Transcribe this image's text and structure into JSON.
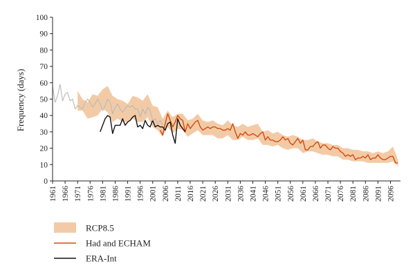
{
  "chart_data": {
    "type": "line",
    "ylabel": "Frequency (days)",
    "xlabel": "",
    "ylim": [
      0,
      100
    ],
    "xlim": [
      1961,
      2100
    ],
    "yticks": [
      0,
      10,
      20,
      30,
      40,
      50,
      60,
      70,
      80,
      90,
      100
    ],
    "xticks": [
      1961,
      1966,
      1971,
      1976,
      1981,
      1986,
      1991,
      1996,
      2001,
      2006,
      2011,
      2016,
      2021,
      2026,
      2031,
      2036,
      2041,
      2046,
      2051,
      2056,
      2061,
      2066,
      2071,
      2076,
      2081,
      2086,
      2091,
      2096
    ],
    "legend_position": "bottom-left",
    "grid": false,
    "series": [
      {
        "name": "RCP8.5",
        "kind": "band",
        "color": "#f2cba6",
        "x": [
          1971,
          1973,
          1975,
          1977,
          1979,
          1981,
          1983,
          1985,
          1987,
          1989,
          1991,
          1993,
          1995,
          1997,
          1999,
          2001,
          2003,
          2005,
          2007,
          2009,
          2011,
          2013,
          2015,
          2017,
          2019,
          2021,
          2023,
          2025,
          2027,
          2029,
          2031,
          2033,
          2035,
          2037,
          2039,
          2041,
          2043,
          2045,
          2047,
          2049,
          2051,
          2053,
          2055,
          2057,
          2059,
          2061,
          2063,
          2065,
          2067,
          2069,
          2071,
          2073,
          2075,
          2077,
          2079,
          2081,
          2083,
          2085,
          2087,
          2089,
          2091,
          2093,
          2095,
          2097,
          2099
        ],
        "upper": [
          55,
          50,
          48,
          53,
          52,
          56,
          58,
          52,
          50,
          49,
          47,
          52,
          51,
          49,
          53,
          46,
          45,
          38,
          43,
          39,
          41,
          41,
          37,
          38,
          41,
          37,
          36,
          37,
          35,
          34,
          37,
          34,
          33,
          35,
          33,
          34,
          35,
          30,
          31,
          29,
          30,
          28,
          27,
          28,
          27,
          25,
          25,
          26,
          24,
          23,
          23,
          22,
          22,
          20,
          20,
          19,
          19,
          18,
          18,
          17,
          18,
          17,
          18,
          21,
          13
        ],
        "lower": [
          43,
          43,
          38,
          39,
          40,
          44,
          42,
          36,
          38,
          36,
          36,
          38,
          36,
          36,
          39,
          33,
          31,
          27,
          33,
          29,
          32,
          31,
          27,
          29,
          31,
          28,
          28,
          28,
          26,
          26,
          28,
          25,
          25,
          27,
          25,
          25,
          26,
          22,
          22,
          21,
          22,
          20,
          19,
          20,
          20,
          17,
          18,
          18,
          17,
          16,
          16,
          15,
          15,
          13,
          13,
          12,
          12,
          12,
          11,
          11,
          11,
          11,
          11,
          12,
          9
        ]
      },
      {
        "name": "Had and ECHAM",
        "kind": "line",
        "color": "#d44a10",
        "x": [
          2004,
          2005,
          2006,
          2007,
          2008,
          2009,
          2010,
          2011,
          2012,
          2013,
          2014,
          2015,
          2016,
          2017,
          2018,
          2019,
          2020,
          2021,
          2022,
          2023,
          2024,
          2025,
          2026,
          2027,
          2028,
          2029,
          2030,
          2031,
          2032,
          2033,
          2034,
          2035,
          2036,
          2037,
          2038,
          2039,
          2040,
          2041,
          2042,
          2043,
          2044,
          2045,
          2046,
          2047,
          2048,
          2049,
          2050,
          2051,
          2052,
          2053,
          2054,
          2055,
          2056,
          2057,
          2058,
          2059,
          2060,
          2061,
          2062,
          2063,
          2064,
          2065,
          2066,
          2067,
          2068,
          2069,
          2070,
          2071,
          2072,
          2073,
          2074,
          2075,
          2076,
          2077,
          2078,
          2079,
          2080,
          2081,
          2082,
          2083,
          2084,
          2085,
          2086,
          2087,
          2088,
          2089,
          2090,
          2091,
          2092,
          2093,
          2094,
          2095,
          2096,
          2097,
          2098,
          2099
        ],
        "y": [
          31,
          28,
          35,
          41,
          37,
          33,
          36,
          40,
          38,
          37,
          30,
          35,
          32,
          34,
          36,
          37,
          33,
          31,
          32,
          33,
          32,
          33,
          33,
          32,
          32,
          31,
          31,
          32,
          31,
          35,
          30,
          26,
          29,
          28,
          30,
          28,
          28,
          29,
          28,
          27,
          29,
          30,
          25,
          27,
          25,
          25,
          24,
          24,
          25,
          27,
          25,
          26,
          23,
          22,
          24,
          26,
          23,
          25,
          19,
          19,
          21,
          21,
          23,
          24,
          20,
          22,
          22,
          20,
          19,
          21,
          20,
          20,
          18,
          17,
          15,
          16,
          15,
          16,
          13,
          14,
          14,
          15,
          14,
          16,
          13,
          14,
          14,
          16,
          14,
          13,
          13,
          14,
          15,
          15,
          11,
          11
        ]
      },
      {
        "name": "ERA-Int",
        "kind": "line",
        "color": "#111111",
        "x": [
          1980,
          1981,
          1982,
          1983,
          1984,
          1985,
          1986,
          1987,
          1988,
          1989,
          1990,
          1991,
          1992,
          1993,
          1994,
          1995,
          1996,
          1997,
          1998,
          1999,
          2000,
          2001,
          2002,
          2003,
          2004,
          2005,
          2006,
          2007,
          2008,
          2009,
          2010,
          2011,
          2012,
          2013,
          2014
        ],
        "y": [
          30,
          34,
          38,
          40,
          39,
          29,
          34,
          34,
          34,
          38,
          34,
          36,
          37,
          39,
          40,
          33,
          34,
          32,
          37,
          34,
          33,
          37,
          33,
          34,
          33,
          33,
          31,
          35,
          36,
          28,
          23,
          38,
          34,
          32,
          30
        ]
      },
      {
        "name": "",
        "kind": "line",
        "color": "#b8b8b8",
        "x": [
          1961,
          1962,
          1963,
          1964,
          1965,
          1966,
          1967,
          1968,
          1969,
          1970,
          1971,
          1972,
          1973,
          1974,
          1975,
          1976,
          1977,
          1978,
          1979,
          1980,
          1981,
          1982,
          1983,
          1984,
          1985,
          1986,
          1987,
          1988,
          1989,
          1990,
          1991,
          1992,
          1993,
          1994,
          1995,
          1996,
          1997,
          1998,
          1999,
          2000,
          2001,
          2002,
          2003,
          2004,
          2005
        ],
        "y": [
          58,
          48,
          52,
          59,
          49,
          53,
          54,
          49,
          50,
          44,
          46,
          45,
          44,
          48,
          50,
          48,
          45,
          47,
          50,
          47,
          43,
          46,
          50,
          48,
          41,
          45,
          47,
          44,
          42,
          44,
          46,
          45,
          46,
          44,
          44,
          39,
          44,
          41,
          45,
          43,
          37,
          38,
          35,
          37,
          34
        ]
      }
    ]
  }
}
